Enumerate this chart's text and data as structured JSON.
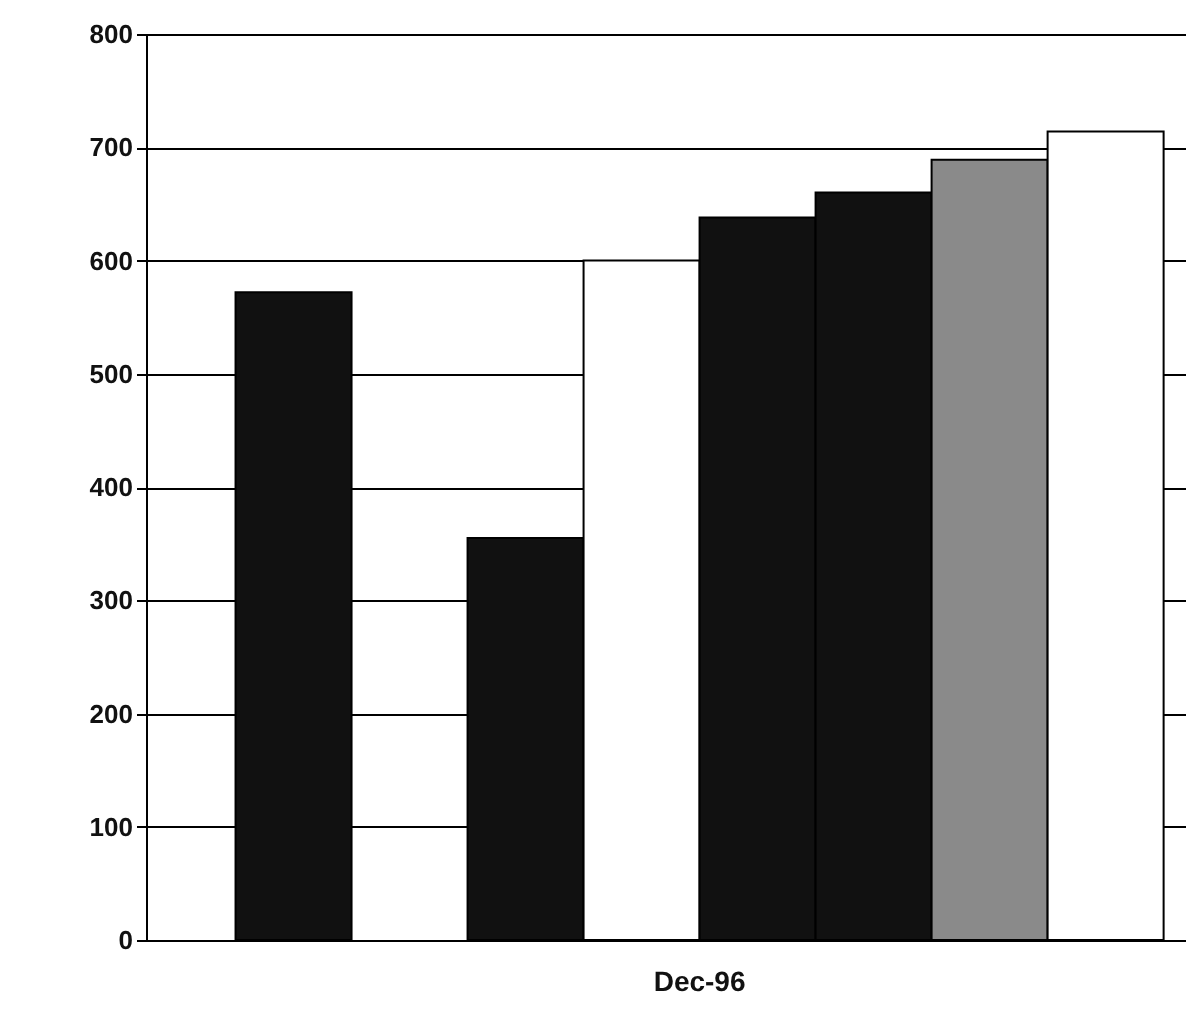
{
  "chart_data": {
    "type": "bar",
    "categories": [
      "Dec-96"
    ],
    "series": [
      {
        "color": "#111111",
        "values": [
          572
        ]
      },
      {
        "color": "#ffffff",
        "values": [
          null
        ]
      },
      {
        "color": "#111111",
        "values": [
          355
        ]
      },
      {
        "color": "#ffffff",
        "values": [
          600
        ]
      },
      {
        "color": "#111111",
        "values": [
          638
        ]
      },
      {
        "color": "#111111",
        "values": [
          660
        ]
      },
      {
        "color": "#8a8a8a",
        "values": [
          689
        ]
      },
      {
        "color": "#ffffff",
        "values": [
          714
        ]
      }
    ],
    "ylim": [
      0,
      800
    ],
    "yticks": [
      0,
      100,
      200,
      300,
      400,
      500,
      600,
      700,
      800
    ],
    "grid": "y"
  }
}
